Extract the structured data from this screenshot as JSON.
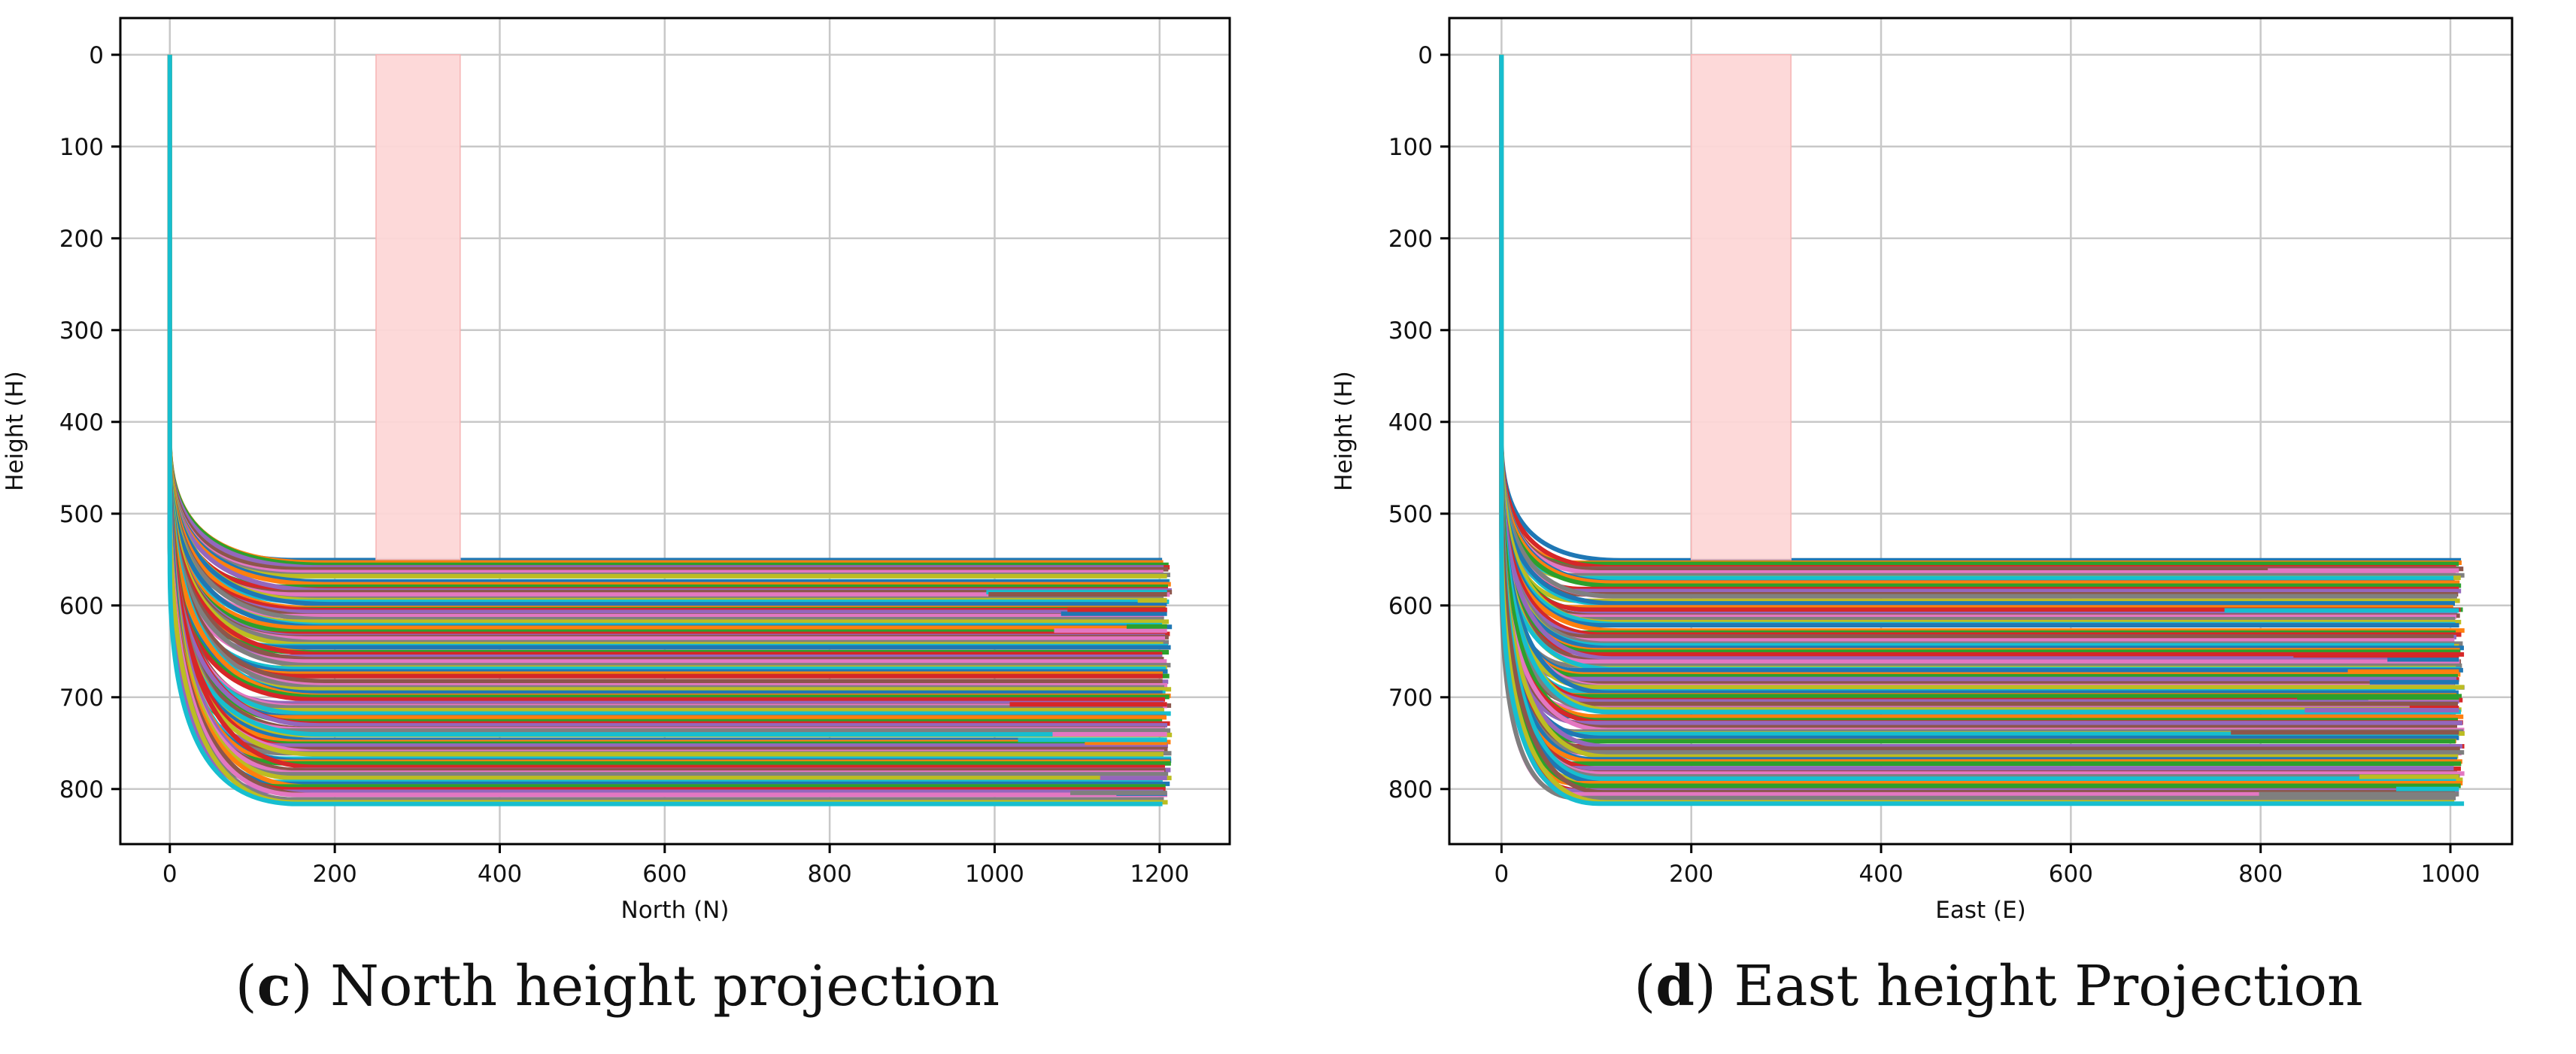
{
  "figure": {
    "colors": {
      "background": "#ffffff",
      "grid": "#c8c8c8",
      "axis": "#000000",
      "band": "#fdd7d7",
      "band_edge": "#f6b4b4",
      "palette": [
        "#1f77b4",
        "#ff7f0e",
        "#2ca02c",
        "#d62728",
        "#9467bd",
        "#8c564b",
        "#e377c2",
        "#7f7f7f",
        "#bcbd22",
        "#17becf"
      ]
    }
  },
  "chart_data": [
    {
      "type": "line",
      "panel": "c",
      "caption_letter": "c",
      "caption_rest": "North height projection",
      "xlabel": "North (N)",
      "ylabel": "Height (H)",
      "xlim": [
        -60,
        1285
      ],
      "ylim": [
        860,
        -40
      ],
      "y_inverted": true,
      "grid": true,
      "xticks": [
        0,
        200,
        400,
        600,
        800,
        1000,
        1200
      ],
      "yticks": [
        0,
        100,
        200,
        300,
        400,
        500,
        600,
        700,
        800
      ],
      "highlight_band": {
        "x": [
          250,
          352
        ],
        "y": [
          0,
          550
        ]
      },
      "series_summary": {
        "count": 110,
        "vertical_descent": {
          "x": 0,
          "y_from": 0,
          "y_to": 420
        },
        "turn_x_range": [
          90,
          200
        ],
        "level_height_range": [
          550,
          815
        ],
        "end_x": 1215
      }
    },
    {
      "type": "line",
      "panel": "d",
      "caption_letter": "d",
      "caption_rest": "East height Projection",
      "xlabel": "East (E)",
      "ylabel": "Height (H)",
      "xlim": [
        -55,
        1065
      ],
      "ylim": [
        860,
        -40
      ],
      "y_inverted": true,
      "grid": true,
      "xticks": [
        0,
        200,
        400,
        600,
        800,
        1000
      ],
      "yticks": [
        0,
        100,
        200,
        300,
        400,
        500,
        600,
        700,
        800
      ],
      "highlight_band": {
        "x": [
          200,
          305
        ],
        "y": [
          0,
          550
        ]
      },
      "series_summary": {
        "count": 110,
        "vertical_descent": {
          "x": 0,
          "y_from": 0,
          "y_to": 420
        },
        "turn_x_range": [
          40,
          130
        ],
        "level_height_range": [
          550,
          815
        ],
        "end_x": 1015
      }
    }
  ]
}
